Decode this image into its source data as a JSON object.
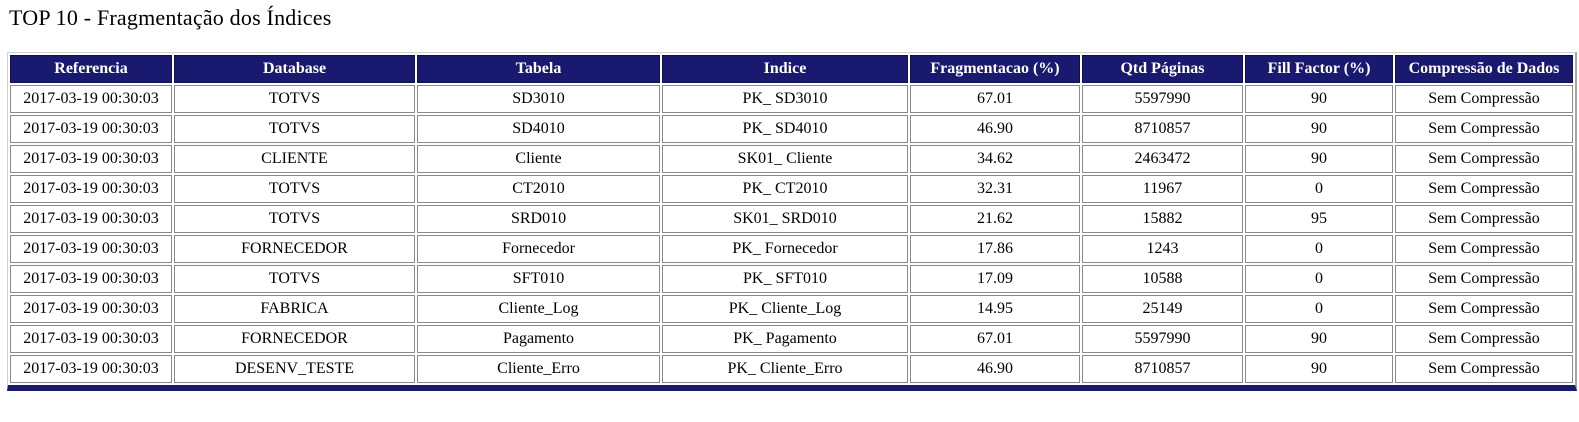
{
  "page_title": "TOP 10 - Fragmentação dos Índices",
  "colors": {
    "header_bg": "#191970",
    "header_text": "#ffffff",
    "row_bg": "#ffffff",
    "cell_border": "#8a8a8a",
    "bottom_bar": "#191970"
  },
  "table": {
    "columns": [
      "Referencia",
      "Database",
      "Tabela",
      "Indice",
      "Fragmentacao (%)",
      "Qtd Páginas",
      "Fill Factor (%)",
      "Compressão de Dados"
    ],
    "rows": [
      [
        "2017-03-19 00:30:03",
        "TOTVS",
        "SD3010",
        "PK_ SD3010",
        "67.01",
        "5597990",
        "90",
        "Sem Compressão"
      ],
      [
        "2017-03-19 00:30:03",
        "TOTVS",
        "SD4010",
        "PK_ SD4010",
        "46.90",
        "8710857",
        "90",
        "Sem Compressão"
      ],
      [
        "2017-03-19 00:30:03",
        "CLIENTE",
        "Cliente",
        "SK01_ Cliente",
        "34.62",
        "2463472",
        "90",
        "Sem Compressão"
      ],
      [
        "2017-03-19 00:30:03",
        "TOTVS",
        "CT2010",
        "PK_ CT2010",
        "32.31",
        "11967",
        "0",
        "Sem Compressão"
      ],
      [
        "2017-03-19 00:30:03",
        "TOTVS",
        "SRD010",
        "SK01_ SRD010",
        "21.62",
        "15882",
        "95",
        "Sem Compressão"
      ],
      [
        "2017-03-19 00:30:03",
        "FORNECEDOR",
        "Fornecedor",
        "PK_ Fornecedor",
        "17.86",
        "1243",
        "0",
        "Sem Compressão"
      ],
      [
        "2017-03-19 00:30:03",
        "TOTVS",
        "SFT010",
        "PK_ SFT010",
        "17.09",
        "10588",
        "0",
        "Sem Compressão"
      ],
      [
        "2017-03-19 00:30:03",
        "FABRICA",
        "Cliente_Log",
        "PK_ Cliente_Log",
        "14.95",
        "25149",
        "0",
        "Sem Compressão"
      ],
      [
        "2017-03-19 00:30:03",
        "FORNECEDOR",
        "Pagamento",
        "PK_ Pagamento",
        "67.01",
        "5597990",
        "90",
        "Sem Compressão"
      ],
      [
        "2017-03-19 00:30:03",
        "DESENV_TESTE",
        "Cliente_Erro",
        "PK_ Cliente_Erro",
        "46.90",
        "8710857",
        "90",
        "Sem Compressão"
      ]
    ]
  }
}
